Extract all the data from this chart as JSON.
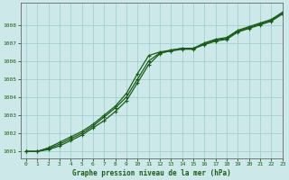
{
  "title": "Graphe pression niveau de la mer (hPa)",
  "bg_color": "#cce8e8",
  "grid_color": "#99cccc",
  "line_color": "#1a5c1a",
  "xlim": [
    -0.5,
    23
  ],
  "ylim": [
    1000.6,
    1009.2
  ],
  "yticks": [
    1001,
    1002,
    1003,
    1004,
    1005,
    1006,
    1007,
    1008
  ],
  "xticks": [
    0,
    1,
    2,
    3,
    4,
    5,
    6,
    7,
    8,
    9,
    10,
    11,
    12,
    13,
    14,
    15,
    16,
    17,
    18,
    19,
    20,
    21,
    22,
    23
  ],
  "series1": {
    "x": [
      0,
      1,
      2,
      3,
      4,
      5,
      6,
      7,
      8,
      9,
      10,
      11,
      12,
      13,
      14,
      15,
      16,
      17,
      18,
      19,
      20,
      21,
      22,
      23
    ],
    "y": [
      1001.0,
      1001.0,
      1001.2,
      1001.5,
      1001.8,
      1002.1,
      1002.5,
      1003.0,
      1003.5,
      1004.2,
      1005.3,
      1006.3,
      1006.5,
      1006.6,
      1006.7,
      1006.7,
      1006.9,
      1007.1,
      1007.2,
      1007.6,
      1007.8,
      1008.0,
      1008.2,
      1008.6
    ]
  },
  "series2": {
    "x": [
      0,
      1,
      2,
      3,
      4,
      5,
      6,
      7,
      8,
      9,
      10,
      11,
      12,
      13,
      14,
      15,
      16,
      17,
      18,
      19,
      20,
      21,
      22,
      23
    ],
    "y": [
      1001.0,
      1001.0,
      1001.1,
      1001.3,
      1001.6,
      1001.9,
      1002.3,
      1002.7,
      1003.2,
      1003.8,
      1004.8,
      1005.8,
      1006.4,
      1006.6,
      1006.7,
      1006.7,
      1007.0,
      1007.2,
      1007.3,
      1007.7,
      1007.9,
      1008.1,
      1008.3,
      1008.7
    ]
  },
  "series3": {
    "x": [
      0,
      1,
      2,
      3,
      4,
      5,
      6,
      7,
      8,
      9,
      10,
      11,
      12,
      13,
      14,
      15,
      16,
      17,
      18,
      19,
      20,
      21,
      22,
      23
    ],
    "y": [
      1001.0,
      1001.0,
      1001.15,
      1001.4,
      1001.7,
      1002.0,
      1002.4,
      1002.9,
      1003.4,
      1004.0,
      1005.0,
      1006.0,
      1006.45,
      1006.55,
      1006.65,
      1006.65,
      1006.95,
      1007.15,
      1007.25,
      1007.65,
      1007.85,
      1008.05,
      1008.25,
      1008.65
    ]
  }
}
